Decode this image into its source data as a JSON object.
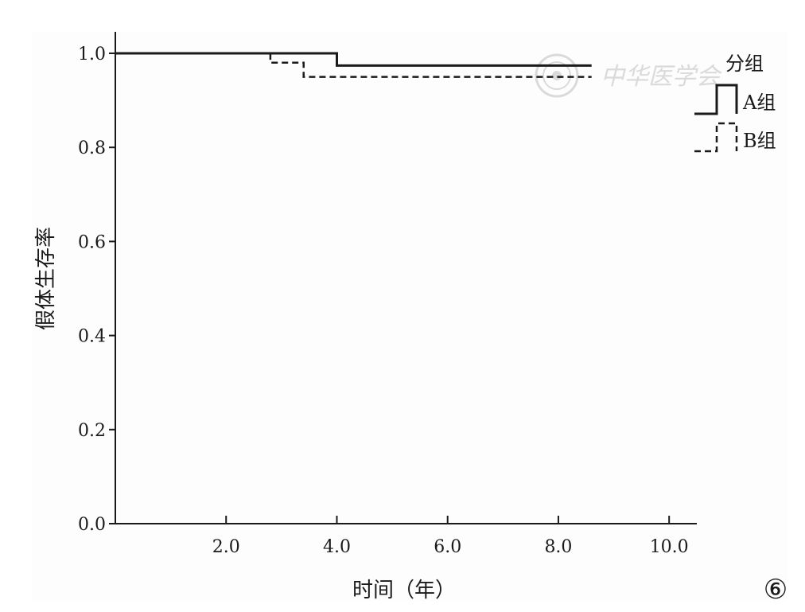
{
  "chart_data": {
    "type": "line",
    "step": true,
    "xlabel": "时间（年）",
    "ylabel": "假体生存率",
    "xlim": [
      0,
      10.5
    ],
    "ylim": [
      0,
      1.0
    ],
    "x_ticks": [
      2.0,
      4.0,
      6.0,
      8.0,
      10.0
    ],
    "x_tick_labels": [
      "2.0",
      "4.0",
      "6.0",
      "8.0",
      "10.0"
    ],
    "y_ticks": [
      0.0,
      0.2,
      0.4,
      0.6,
      0.8,
      1.0
    ],
    "y_tick_labels": [
      "0.0",
      "0.2",
      "0.4",
      "0.6",
      "0.8",
      "1.0"
    ],
    "grid": false,
    "legend": {
      "title": "分组",
      "position": "top-right"
    },
    "series": [
      {
        "name": "A组",
        "style": "solid",
        "color": "#1a1a1a",
        "points": [
          [
            0,
            1.0
          ],
          [
            4.0,
            1.0
          ],
          [
            4.0,
            0.974
          ],
          [
            8.6,
            0.974
          ]
        ]
      },
      {
        "name": "B组",
        "style": "dashed",
        "color": "#1a1a1a",
        "points": [
          [
            0,
            1.0
          ],
          [
            2.8,
            1.0
          ],
          [
            2.8,
            0.98
          ],
          [
            3.4,
            0.98
          ],
          [
            3.4,
            0.95
          ],
          [
            8.6,
            0.95
          ]
        ]
      }
    ]
  },
  "figure_label": "⑥",
  "watermark": {
    "text": "中华医学会"
  },
  "colors": {
    "background": "#fdfdfd",
    "ink": "#1a1a1a"
  }
}
